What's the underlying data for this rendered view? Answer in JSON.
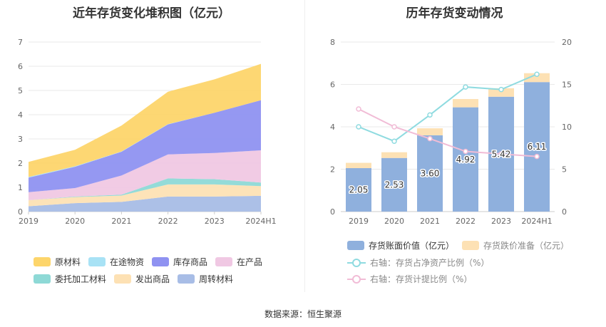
{
  "left_chart": {
    "title": "近年存货变化堆积图（亿元）"
  },
  "right_chart": {
    "title": "历年存货变动情况",
    "legend": {
      "bar1": "存货账面价值（亿元）",
      "bar2": "存货跌价准备（亿元）",
      "line1": "右轴：存货占净资产比例（%）",
      "line2": "右轴：存货计提比例（%）"
    }
  },
  "source": "数据来源：恒生聚源",
  "chart_data": [
    {
      "type": "area",
      "stacked": true,
      "title": "近年存货变化堆积图（亿元）",
      "categories": [
        "2019",
        "2020",
        "2021",
        "2022",
        "2023",
        "2024H1"
      ],
      "ylim": [
        0,
        7
      ],
      "yticks": [
        0,
        1,
        2,
        3,
        4,
        5,
        6,
        7
      ],
      "grid": true,
      "legend_position": "bottom",
      "series": [
        {
          "name": "周转材料",
          "color": "#a8bde6",
          "values": [
            0.22,
            0.35,
            0.4,
            0.62,
            0.62,
            0.65
          ]
        },
        {
          "name": "发出商品",
          "color": "#fde1b4",
          "values": [
            0.25,
            0.25,
            0.26,
            0.5,
            0.5,
            0.4
          ]
        },
        {
          "name": "委托加工材料",
          "color": "#8ed9d6",
          "values": [
            0.0,
            0.02,
            0.04,
            0.25,
            0.22,
            0.15
          ]
        },
        {
          "name": "在产品",
          "color": "#f0c8e3",
          "values": [
            0.33,
            0.35,
            0.79,
            0.99,
            1.08,
            1.33
          ]
        },
        {
          "name": "库存商品",
          "color": "#8f92f1",
          "values": [
            0.6,
            0.88,
            0.98,
            1.24,
            1.66,
            2.07
          ]
        },
        {
          "name": "在途物资",
          "color": "#a8e2f5",
          "values": [
            0.03,
            0.02,
            0.01,
            0.01,
            0.0,
            0.0
          ]
        },
        {
          "name": "原材料",
          "color": "#fdd56b",
          "values": [
            0.62,
            0.68,
            1.07,
            1.34,
            1.38,
            1.5
          ]
        }
      ],
      "legend_order": [
        "原材料",
        "在途物资",
        "库存商品",
        "在产品",
        "委托加工材料",
        "发出商品",
        "周转材料"
      ]
    },
    {
      "type": "bar",
      "stacked": true,
      "title": "历年存货变动情况",
      "categories": [
        "2019",
        "2020",
        "2021",
        "2022",
        "2023",
        "2024H1"
      ],
      "ylim": [
        0,
        8
      ],
      "yticks": [
        0,
        2,
        4,
        6,
        8
      ],
      "y2lim": [
        0,
        20
      ],
      "y2ticks": [
        0,
        5,
        10,
        15,
        20
      ],
      "grid": true,
      "legend_position": "bottom",
      "series": [
        {
          "name": "存货账面价值（亿元）",
          "kind": "bar",
          "color": "#8fb0dd",
          "values": [
            2.05,
            2.53,
            3.6,
            4.92,
            5.42,
            6.11
          ],
          "labels": [
            "2.05",
            "2.53",
            "3.60",
            "4.92",
            "5.42",
            "6.11"
          ]
        },
        {
          "name": "存货跌价准备（亿元）",
          "kind": "bar",
          "color": "#fde1b4",
          "values": [
            0.25,
            0.27,
            0.33,
            0.39,
            0.4,
            0.42
          ]
        },
        {
          "name": "右轴：存货占净资产比例（%）",
          "kind": "line",
          "axis": "right",
          "color": "#8fdbe0",
          "values": [
            10.0,
            8.3,
            11.4,
            14.7,
            14.4,
            16.2
          ]
        },
        {
          "name": "右轴：存货计提比例（%）",
          "kind": "line",
          "axis": "right",
          "color": "#f1bcd6",
          "values": [
            12.1,
            10.0,
            8.6,
            7.1,
            6.8,
            6.5
          ]
        }
      ]
    }
  ]
}
